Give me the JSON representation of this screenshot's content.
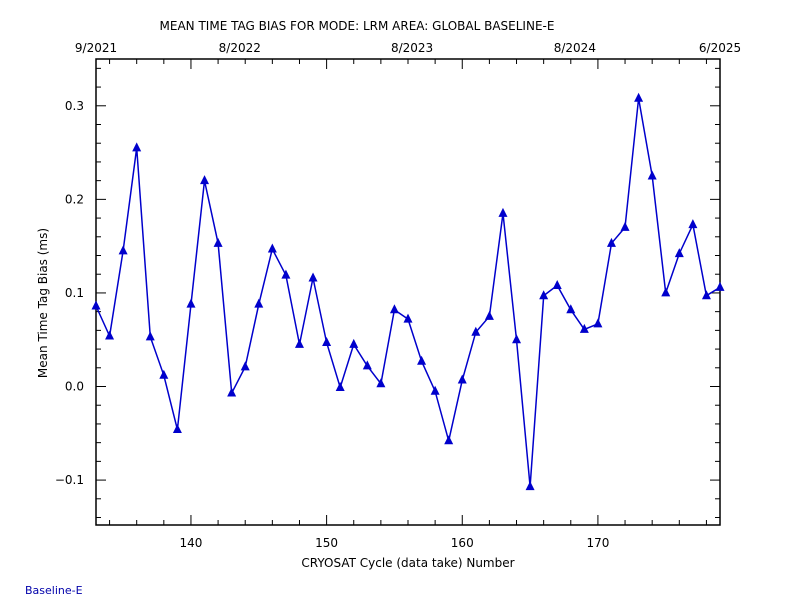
{
  "chart_data": {
    "type": "line",
    "title": "MEAN TIME TAG BIAS FOR MODE: LRM AREA: GLOBAL BASELINE-E",
    "xlabel": "CRYOSAT Cycle (data take) Number",
    "ylabel": "Mean Time Tag Bias (ms)",
    "xlim": [
      133,
      179
    ],
    "ylim": [
      -0.148,
      0.35
    ],
    "x_ticks": [
      140,
      150,
      160,
      170
    ],
    "y_ticks": [
      -0.1,
      0.0,
      0.1,
      0.2,
      0.3
    ],
    "x_tick_labels": [
      "140",
      "150",
      "160",
      "170"
    ],
    "y_tick_labels": [
      "−0.1",
      "0.0",
      "0.1",
      "0.2",
      "0.3"
    ],
    "top_axis_ticks": [
      {
        "x": 133,
        "label": "9/2021"
      },
      {
        "x": 143.6,
        "label": "8/2022"
      },
      {
        "x": 156.3,
        "label": "8/2023"
      },
      {
        "x": 168.3,
        "label": "8/2024"
      },
      {
        "x": 179,
        "label": "6/2025"
      }
    ],
    "grid": false,
    "legend": "none",
    "series_color": "#0000cc",
    "series": [
      {
        "x": [
          133,
          134,
          135,
          136,
          137,
          138,
          139,
          140,
          141,
          142,
          143,
          144,
          145,
          146,
          147,
          148,
          149,
          150,
          151,
          152,
          153,
          154,
          155,
          156,
          157,
          158,
          159,
          160,
          161,
          162,
          163,
          164,
          165,
          166,
          167,
          168,
          169,
          170,
          171,
          172,
          173,
          174,
          175,
          176,
          177,
          178,
          179
        ],
        "values": [
          0.086,
          0.054,
          0.145,
          0.255,
          0.053,
          0.012,
          -0.046,
          0.088,
          0.22,
          0.153,
          -0.007,
          0.021,
          0.088,
          0.147,
          0.119,
          0.045,
          0.116,
          0.047,
          -0.001,
          0.045,
          0.022,
          0.003,
          0.082,
          0.072,
          0.027,
          -0.005,
          -0.058,
          0.007,
          0.058,
          0.075,
          0.185,
          0.05,
          -0.107,
          0.097,
          0.108,
          0.082,
          0.061,
          0.067,
          0.153,
          0.17,
          0.308,
          0.225,
          0.1,
          0.142,
          0.173,
          0.097,
          0.106
        ]
      }
    ]
  },
  "footer": {
    "baseline_label": "Baseline-E"
  }
}
